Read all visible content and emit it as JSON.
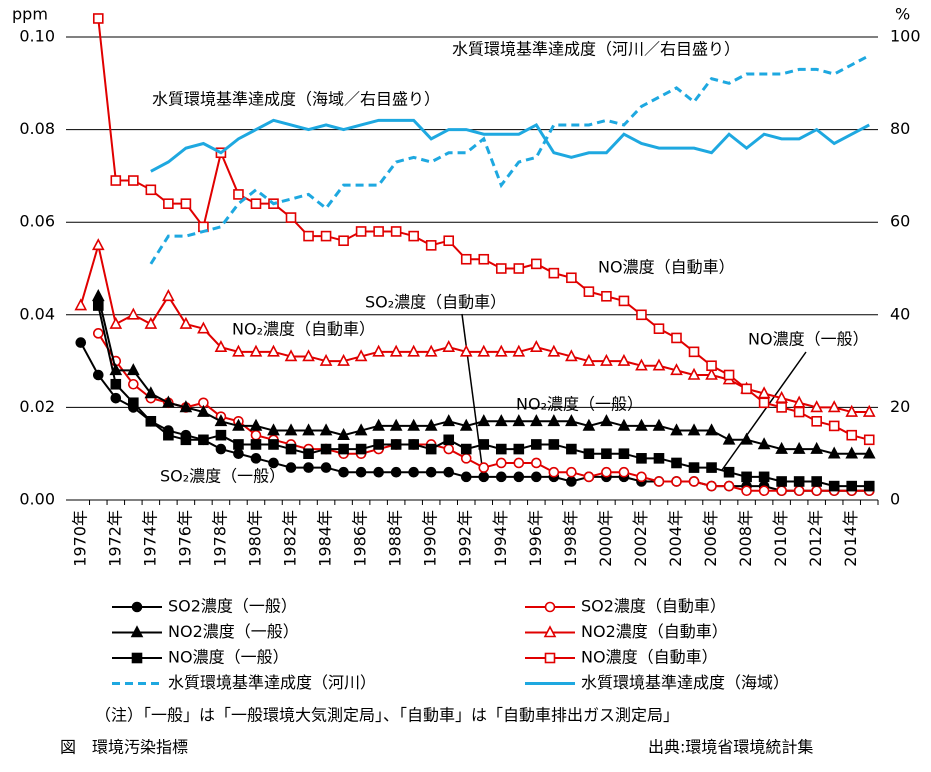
{
  "chart_data": {
    "type": "line",
    "ylabel": "ppm",
    "y2label": "%",
    "ylim": [
      0,
      0.1
    ],
    "yticks": [
      {
        "value": 0,
        "label": "0.00"
      },
      {
        "value": 0.02,
        "label": "0.02"
      },
      {
        "value": 0.04,
        "label": "0.04"
      },
      {
        "value": 0.06,
        "label": "0.06"
      },
      {
        "value": 0.08,
        "label": "0.08"
      },
      {
        "value": 0.1,
        "label": "0.10"
      }
    ],
    "y2lim": [
      0,
      100
    ],
    "y2ticks": [
      0,
      20,
      40,
      60,
      80,
      100
    ],
    "grid": true,
    "categories": [
      "1970年",
      null,
      "1972年",
      null,
      "1974年",
      null,
      "1976年",
      null,
      "1978年",
      null,
      "1980年",
      null,
      "1982年",
      null,
      "1984年",
      null,
      "1986年",
      null,
      "1988年",
      null,
      "1990年",
      null,
      "1992年",
      null,
      "1994年",
      null,
      "1996年",
      null,
      "1998年",
      null,
      "2000年",
      null,
      "2002年",
      null,
      "2004年",
      null,
      "2006年",
      null,
      "2008年",
      null,
      "2010年",
      null,
      "2012年",
      null,
      "2014年",
      null
    ],
    "series": [
      {
        "name": "SO2濃度（一般）",
        "color": "#000000",
        "marker": "circle",
        "filled": true,
        "values": [
          0.034,
          0.027,
          0.022,
          0.02,
          0.017,
          0.015,
          0.014,
          0.013,
          0.011,
          0.01,
          0.009,
          0.008,
          0.007,
          0.007,
          0.007,
          0.006,
          0.006,
          0.006,
          0.006,
          0.006,
          0.006,
          0.006,
          0.005,
          0.005,
          0.005,
          0.005,
          0.005,
          0.005,
          0.004,
          0.005,
          0.005,
          0.005,
          0.004,
          0.004,
          0.004,
          0.004,
          0.003,
          0.003,
          0.003,
          0.003,
          0.002,
          0.002,
          0.002,
          0.002,
          0.002,
          0.002
        ]
      },
      {
        "name": "SO2濃度（自動車）",
        "color": "#e00000",
        "marker": "circle",
        "filled": false,
        "values": [
          null,
          0.036,
          0.03,
          0.025,
          0.022,
          0.021,
          0.02,
          0.021,
          0.018,
          0.017,
          0.014,
          0.013,
          0.012,
          0.011,
          0.011,
          0.01,
          0.01,
          0.011,
          0.012,
          0.012,
          0.012,
          0.011,
          0.009,
          0.007,
          0.008,
          0.008,
          0.008,
          0.006,
          0.006,
          0.005,
          0.006,
          0.006,
          0.005,
          0.004,
          0.004,
          0.004,
          0.003,
          0.003,
          0.002,
          0.002,
          0.002,
          0.002,
          0.002,
          0.002,
          0.002,
          0.002
        ]
      },
      {
        "name": "NO2濃度（一般）",
        "color": "#000000",
        "marker": "triangle",
        "filled": true,
        "values": [
          null,
          0.044,
          0.028,
          0.028,
          0.023,
          0.021,
          0.02,
          0.019,
          0.017,
          0.016,
          0.016,
          0.015,
          0.015,
          0.015,
          0.015,
          0.014,
          0.015,
          0.016,
          0.016,
          0.016,
          0.016,
          0.017,
          0.016,
          0.017,
          0.017,
          0.017,
          0.017,
          0.017,
          0.017,
          0.016,
          0.017,
          0.016,
          0.016,
          0.016,
          0.015,
          0.015,
          0.015,
          0.013,
          0.013,
          0.012,
          0.011,
          0.011,
          0.011,
          0.01,
          0.01,
          0.01
        ]
      },
      {
        "name": "NO2濃度（自動車）",
        "color": "#e00000",
        "marker": "triangle",
        "filled": false,
        "values": [
          0.042,
          0.055,
          0.038,
          0.04,
          0.038,
          0.044,
          0.038,
          0.037,
          0.033,
          0.032,
          0.032,
          0.032,
          0.031,
          0.031,
          0.03,
          0.03,
          0.031,
          0.032,
          0.032,
          0.032,
          0.032,
          0.033,
          0.032,
          0.032,
          0.032,
          0.032,
          0.033,
          0.032,
          0.031,
          0.03,
          0.03,
          0.03,
          0.029,
          0.029,
          0.028,
          0.027,
          0.027,
          0.026,
          0.024,
          0.023,
          0.022,
          0.021,
          0.02,
          0.02,
          0.019,
          0.019
        ]
      },
      {
        "name": "NO濃度（一般）",
        "color": "#000000",
        "marker": "square",
        "filled": true,
        "values": [
          null,
          0.042,
          0.025,
          0.021,
          0.017,
          0.014,
          0.013,
          0.013,
          0.014,
          0.012,
          0.012,
          0.012,
          0.011,
          0.01,
          0.011,
          0.011,
          0.011,
          0.012,
          0.012,
          0.012,
          0.011,
          0.013,
          0.011,
          0.012,
          0.011,
          0.011,
          0.012,
          0.012,
          0.011,
          0.01,
          0.01,
          0.01,
          0.009,
          0.009,
          0.008,
          0.007,
          0.007,
          0.006,
          0.005,
          0.005,
          0.004,
          0.004,
          0.004,
          0.003,
          0.003,
          0.003
        ]
      },
      {
        "name": "NO濃度（自動車）",
        "color": "#e00000",
        "marker": "square",
        "filled": false,
        "values": [
          null,
          0.104,
          0.069,
          0.069,
          0.067,
          0.064,
          0.064,
          0.059,
          0.075,
          0.066,
          0.064,
          0.064,
          0.061,
          0.057,
          0.057,
          0.056,
          0.058,
          0.058,
          0.058,
          0.057,
          0.055,
          0.056,
          0.052,
          0.052,
          0.05,
          0.05,
          0.051,
          0.049,
          0.048,
          0.045,
          0.044,
          0.043,
          0.04,
          0.037,
          0.035,
          0.032,
          0.029,
          0.027,
          0.024,
          0.021,
          0.02,
          0.019,
          0.017,
          0.016,
          0.014,
          0.013
        ]
      },
      {
        "name": "水質環境基準達成度（河川）",
        "color": "#1ea8e0",
        "dashed": true,
        "axis": "y2",
        "values": [
          null,
          null,
          null,
          null,
          51,
          57,
          57,
          58,
          59,
          64,
          67,
          64,
          65,
          66,
          63,
          68,
          68,
          68,
          73,
          74,
          73,
          75,
          75,
          78,
          68,
          73,
          74,
          81,
          81,
          81,
          82,
          81,
          85,
          87,
          89,
          86,
          91,
          90,
          92,
          92,
          92,
          93,
          93,
          92,
          94,
          96
        ]
      },
      {
        "name": "水質環境基準達成度（海域）",
        "color": "#1ea8e0",
        "dashed": false,
        "axis": "y2",
        "values": [
          null,
          null,
          null,
          null,
          71,
          73,
          76,
          77,
          75,
          78,
          80,
          82,
          81,
          80,
          81,
          80,
          81,
          82,
          82,
          82,
          78,
          80,
          80,
          79,
          79,
          79,
          81,
          75,
          74,
          75,
          75,
          79,
          77,
          76,
          76,
          76,
          75,
          79,
          76,
          79,
          78,
          78,
          80,
          77,
          79,
          81
        ]
      }
    ],
    "annotations": [
      "水質環境基準達成度（河川／右目盛り）",
      "水質環境基準達成度（海域／右目盛り）",
      "NO濃度（自動車）",
      "SO₂濃度（自動車）",
      "NO₂濃度（自動車）",
      "NO₂濃度（一般）",
      "SO₂濃度（一般）",
      "NO濃度（一般）"
    ],
    "note": "（注）「一般」は「一般環境大気測定局」、「自動車」は「自動車排出ガス測定局」",
    "caption": "図　環境汚染指標",
    "source": "出典:環境省環境統計集"
  }
}
